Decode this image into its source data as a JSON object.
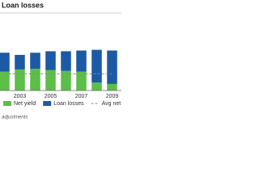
{
  "chart_data": {
    "type": "bar",
    "stacked": true,
    "title": "Loan losses",
    "note": "adjustments",
    "categories": [
      null,
      "2003",
      null,
      "2005",
      null,
      "2007",
      null,
      "2009"
    ],
    "series": [
      {
        "name": "Net yield",
        "color": "#5cbf48",
        "values": [
          2.6,
          2.9,
          3.0,
          2.8,
          2.7,
          2.6,
          1.1,
          0.9
        ]
      },
      {
        "name": "Loan losses",
        "color": "#1c5aa6",
        "values": [
          2.6,
          2.0,
          2.2,
          2.6,
          2.7,
          2.9,
          4.5,
          4.6
        ]
      },
      {
        "name": "Avg net yield",
        "color": "#888888",
        "type": "line",
        "dashed": true,
        "values": [
          2.3,
          2.3,
          2.3,
          2.3,
          2.3,
          2.3,
          2.3,
          2.3
        ]
      }
    ],
    "ylim": [
      0,
      8
    ]
  }
}
